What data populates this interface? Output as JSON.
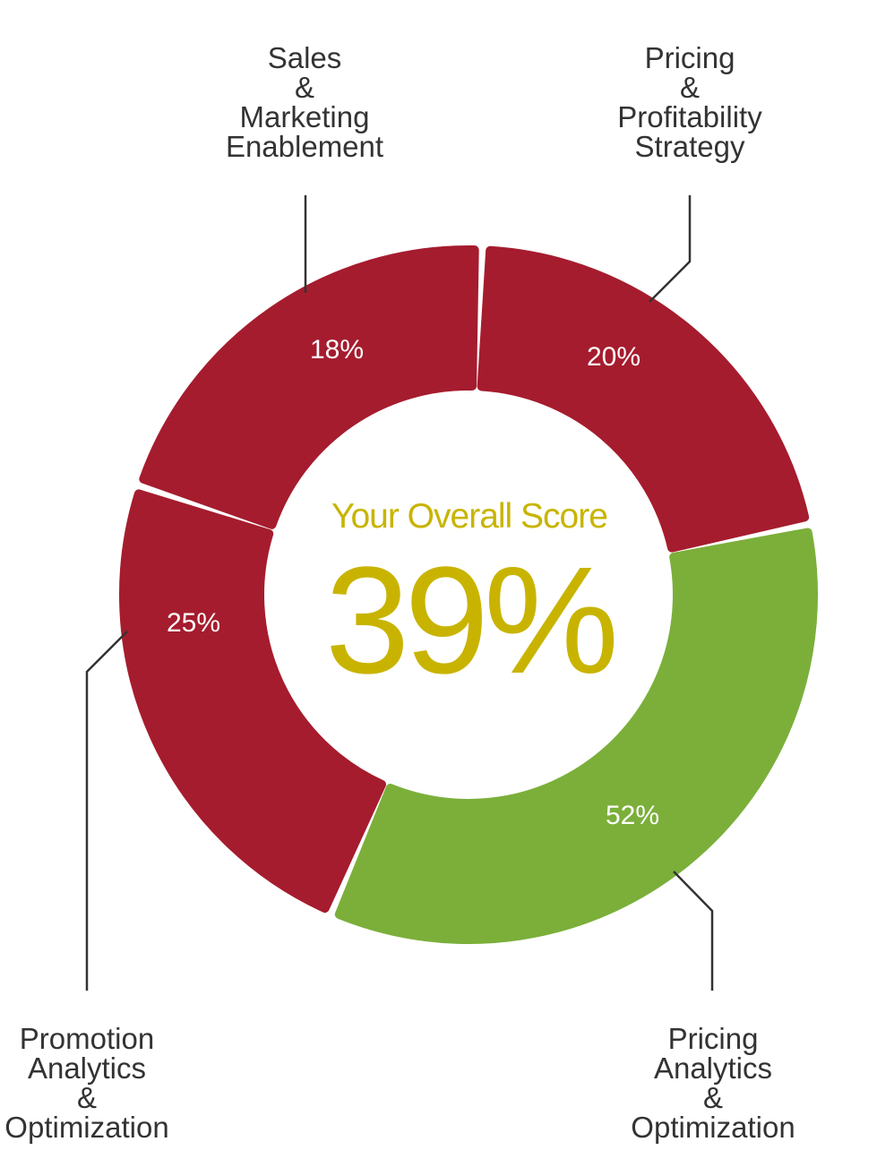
{
  "chart_data": {
    "type": "pie",
    "style": "donut",
    "center_title": "Your Overall Score",
    "center_value": "39%",
    "categories": [
      {
        "label_lines": [
          "Pricing",
          "&",
          "Profitability",
          "Strategy"
        ],
        "value": 20,
        "value_label": "20%",
        "color": "#A51C2E"
      },
      {
        "label_lines": [
          "Pricing",
          "Analytics",
          "&",
          "Optimization"
        ],
        "value": 52,
        "value_label": "52%",
        "color": "#7BAF3A"
      },
      {
        "label_lines": [
          "Promotion",
          "Analytics",
          "&",
          "Optimization"
        ],
        "value": 25,
        "value_label": "25%",
        "color": "#A51C2E"
      },
      {
        "label_lines": [
          "Sales",
          "&",
          "Marketing",
          "Enablement"
        ],
        "value": 18,
        "value_label": "18%",
        "color": "#A51C2E"
      }
    ],
    "colors": {
      "low": "#A51C2E",
      "high": "#7BAF3A",
      "score_text": "#C8B400",
      "label_text": "#333333",
      "value_text": "#FFFFFF"
    }
  }
}
